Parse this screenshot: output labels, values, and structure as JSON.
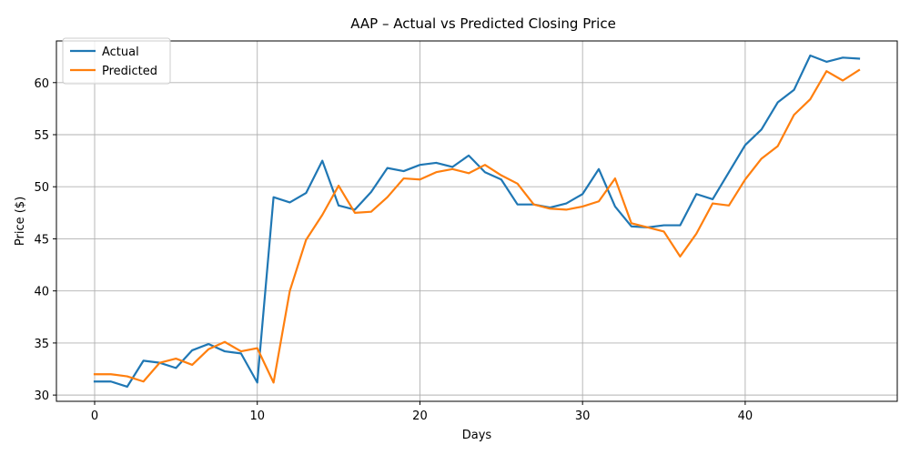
{
  "chart_data": {
    "type": "line",
    "title": "AAP – Actual vs Predicted Closing Price",
    "xlabel": "Days",
    "ylabel": "Price ($)",
    "xlim": [
      -2.35,
      49.35
    ],
    "ylim": [
      29.4,
      64.0
    ],
    "xticks": [
      0,
      10,
      20,
      30,
      40
    ],
    "yticks": [
      30,
      35,
      40,
      45,
      50,
      55,
      60
    ],
    "grid": true,
    "legend_position": "top-left",
    "series": [
      {
        "name": "Actual",
        "color": "#1f77b4",
        "x": [
          0,
          1,
          2,
          3,
          4,
          5,
          6,
          7,
          8,
          9,
          10,
          11,
          12,
          13,
          14,
          15,
          16,
          17,
          18,
          19,
          20,
          21,
          22,
          23,
          24,
          25,
          26,
          27,
          28,
          29,
          30,
          31,
          32,
          33,
          34,
          35,
          36,
          37,
          38,
          39,
          40,
          41,
          42,
          43,
          44,
          45,
          46,
          47
        ],
        "values": [
          31.3,
          31.3,
          30.8,
          33.3,
          33.1,
          32.6,
          34.3,
          34.9,
          34.2,
          34.0,
          31.2,
          49.0,
          48.5,
          49.4,
          52.5,
          48.2,
          47.8,
          49.5,
          51.8,
          51.5,
          52.1,
          52.3,
          51.9,
          53.0,
          51.4,
          50.7,
          48.3,
          48.3,
          48.0,
          48.4,
          49.3,
          51.7,
          48.1,
          46.2,
          46.1,
          46.3,
          46.3,
          49.3,
          48.8,
          51.4,
          54.0,
          55.5,
          58.1,
          59.3,
          62.6,
          62.0,
          62.4,
          62.3
        ]
      },
      {
        "name": "Predicted",
        "color": "#ff7f0e",
        "x": [
          0,
          1,
          2,
          3,
          4,
          5,
          6,
          7,
          8,
          9,
          10,
          11,
          12,
          13,
          14,
          15,
          16,
          17,
          18,
          19,
          20,
          21,
          22,
          23,
          24,
          25,
          26,
          27,
          28,
          29,
          30,
          31,
          32,
          33,
          34,
          35,
          36,
          37,
          38,
          39,
          40,
          41,
          42,
          43,
          44,
          45,
          46,
          47
        ],
        "values": [
          32.0,
          32.0,
          31.8,
          31.3,
          33.1,
          33.5,
          32.9,
          34.4,
          35.1,
          34.2,
          34.5,
          31.2,
          40.0,
          44.9,
          47.3,
          50.1,
          47.5,
          47.6,
          49.0,
          50.8,
          50.7,
          51.4,
          51.7,
          51.3,
          52.1,
          51.1,
          50.3,
          48.3,
          47.9,
          47.8,
          48.1,
          48.6,
          50.8,
          46.5,
          46.1,
          45.7,
          43.3,
          45.5,
          48.4,
          48.2,
          50.7,
          52.7,
          53.9,
          56.9,
          58.4,
          61.1,
          60.2,
          61.2
        ]
      }
    ]
  }
}
